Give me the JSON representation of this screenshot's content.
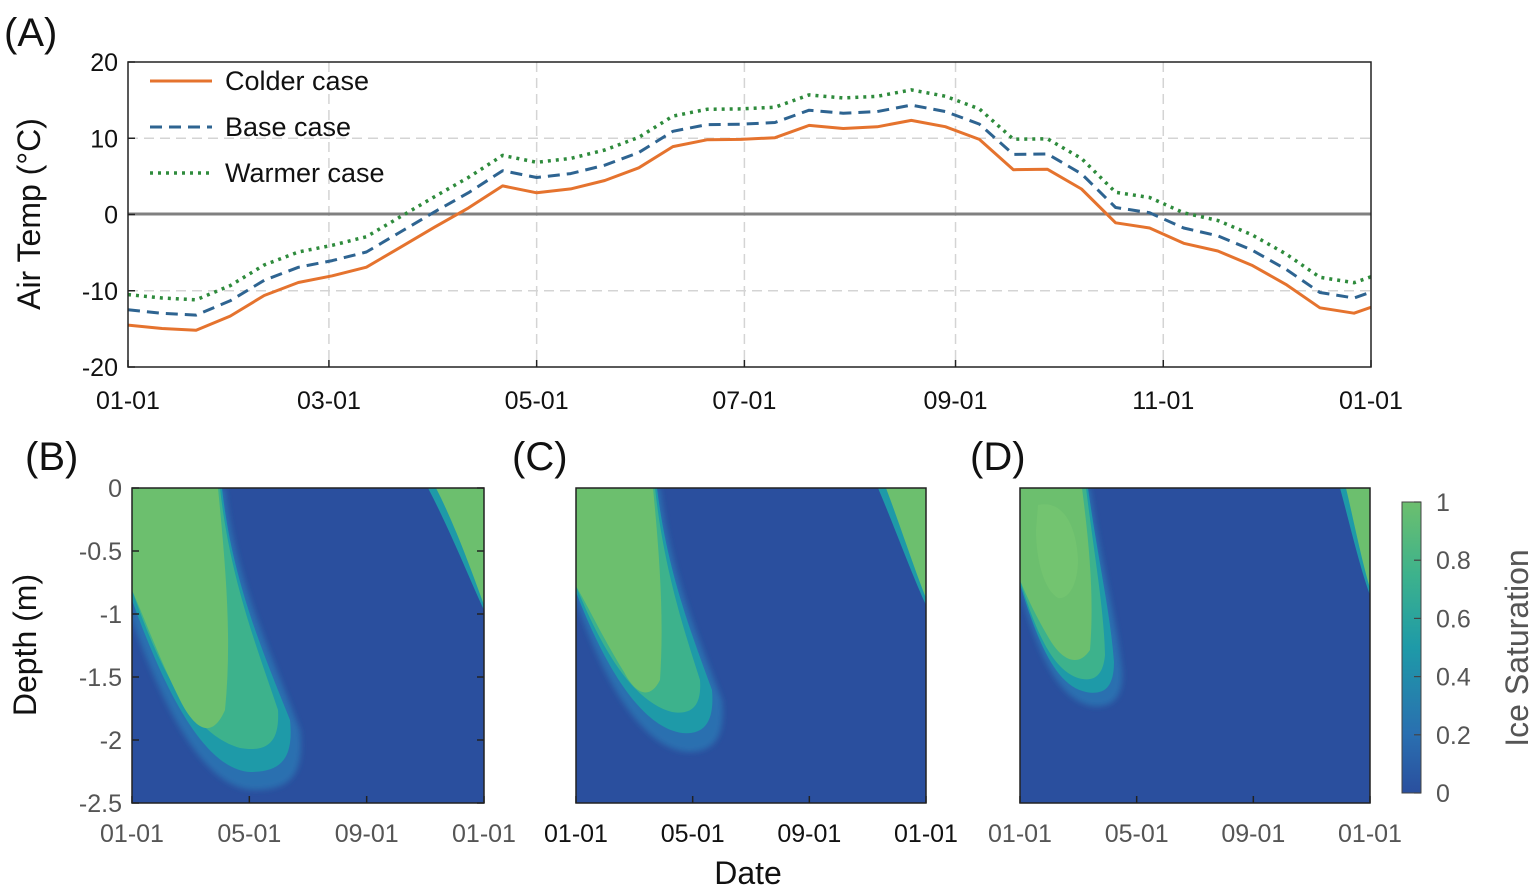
{
  "figure": {
    "panel_labels": [
      "(A)",
      "(B)",
      "(C)",
      "(D)"
    ],
    "xlabel": "Date",
    "colors": {
      "colder": "#e5732e",
      "base": "#2e6491",
      "warmer": "#2e8b3c",
      "zero_line": "#808080",
      "grid": "#d0d0d0"
    }
  },
  "chart_data": [
    {
      "panel": "(A)",
      "type": "line",
      "ylabel": "Air Temp (°C)",
      "ylim": [
        -20,
        20
      ],
      "yticks": [
        20,
        10,
        0,
        -10,
        -20
      ],
      "xlim": [
        0,
        365
      ],
      "xticks": [
        {
          "day": 0,
          "label": "01-01"
        },
        {
          "day": 59,
          "label": "03-01"
        },
        {
          "day": 120,
          "label": "05-01"
        },
        {
          "day": 181,
          "label": "07-01"
        },
        {
          "day": 243,
          "label": "09-01"
        },
        {
          "day": 304,
          "label": "11-01"
        },
        {
          "day": 365,
          "label": "01-01"
        }
      ],
      "grid": true,
      "reference_line_y": 0,
      "legend_position": "top-left",
      "x": [
        0,
        10,
        20,
        30,
        40,
        50,
        60,
        70,
        80,
        90,
        100,
        110,
        120,
        130,
        140,
        150,
        160,
        170,
        180,
        190,
        200,
        210,
        220,
        230,
        240,
        250,
        260,
        270,
        280,
        290,
        300,
        310,
        320,
        330,
        340,
        350,
        360,
        365
      ],
      "series": [
        {
          "name": "Colder case",
          "style": "solid",
          "color": "#e5732e",
          "values": [
            -14.5,
            -15.3,
            -15.1,
            -13.0,
            -10.8,
            -9.2,
            -7.8,
            -6.7,
            -4.6,
            -1.8,
            1.2,
            3.8,
            2.5,
            3.4,
            4.8,
            6.0,
            8.6,
            10.0,
            10.1,
            9.8,
            11.5,
            11.6,
            11.6,
            12.0,
            11.5,
            10.2,
            5.8,
            5.6,
            3.5,
            -0.8,
            -2.0,
            -4.0,
            -4.5,
            -6.5,
            -9.5,
            -12.3,
            -12.6,
            -12.2
          ]
        },
        {
          "name": "Base case",
          "style": "dashed",
          "color": "#2e6491",
          "values": [
            -12.5,
            -13.3,
            -13.1,
            -11.0,
            -8.8,
            -7.2,
            -5.8,
            -4.7,
            -2.6,
            0.2,
            3.2,
            5.8,
            4.5,
            5.4,
            6.8,
            8.0,
            10.6,
            12.0,
            12.1,
            11.8,
            13.5,
            13.6,
            13.6,
            14.0,
            13.5,
            12.2,
            7.8,
            7.6,
            5.5,
            1.2,
            0.0,
            -2.0,
            -2.5,
            -4.5,
            -7.5,
            -10.3,
            -10.6,
            -10.2
          ]
        },
        {
          "name": "Warmer case",
          "style": "dotted",
          "color": "#2e8b3c",
          "values": [
            -10.5,
            -11.3,
            -11.1,
            -9.0,
            -6.8,
            -5.2,
            -3.8,
            -2.7,
            -0.6,
            2.2,
            5.2,
            7.8,
            6.5,
            7.4,
            8.8,
            10.0,
            12.6,
            14.0,
            14.1,
            13.8,
            15.5,
            15.6,
            15.6,
            16.0,
            15.5,
            14.2,
            9.8,
            9.6,
            7.5,
            3.2,
            2.0,
            0.0,
            -0.5,
            -2.5,
            -5.5,
            -8.3,
            -8.6,
            -8.2
          ]
        }
      ]
    },
    {
      "panel": "(B)",
      "type": "heatmap",
      "variable": "Ice Saturation",
      "ylabel": "Depth (m)",
      "ylim": [
        -2.5,
        0
      ],
      "yticks": [
        "0",
        "-0.5",
        "-1",
        "-1.5",
        "-2",
        "-2.5"
      ],
      "xticks": [
        "01-01",
        "05-01",
        "09-01",
        "01-01"
      ],
      "frozen_zone": {
        "thaw_start_surface_day": 75,
        "max_depth_m": -2.3,
        "bottom_day": 145,
        "core_saturation": 0.8,
        "refreeze_start_day": 330,
        "refreeze_depth_at_year_end_m": -0.9
      }
    },
    {
      "panel": "(C)",
      "type": "heatmap",
      "variable": "Ice Saturation",
      "xticks": [
        "01-01",
        "05-01",
        "09-01",
        "01-01"
      ],
      "frozen_zone": {
        "thaw_start_surface_day": 65,
        "max_depth_m": -2.0,
        "bottom_day": 130,
        "core_saturation": 0.78,
        "refreeze_start_day": 340,
        "refreeze_depth_at_year_end_m": -0.9
      }
    },
    {
      "panel": "(D)",
      "type": "heatmap",
      "variable": "Ice Saturation",
      "xticks": [
        "01-01",
        "05-01",
        "09-01",
        "01-01"
      ],
      "frozen_zone": {
        "thaw_start_surface_day": 55,
        "max_depth_m": -1.7,
        "bottom_day": 118,
        "core_saturation": 0.85,
        "refreeze_start_day": 350,
        "refreeze_depth_at_year_end_m": -0.8
      }
    },
    {
      "type": "colorbar",
      "label": "Ice Saturation",
      "range": [
        0,
        1
      ],
      "ticks": [
        "1",
        "0.8",
        "0.6",
        "0.4",
        "0.2",
        "0"
      ],
      "colors": [
        "#2a4f9e",
        "#2a6fb0",
        "#1e9aa8",
        "#3db28c",
        "#5cb97a",
        "#6cbf6e"
      ]
    }
  ]
}
